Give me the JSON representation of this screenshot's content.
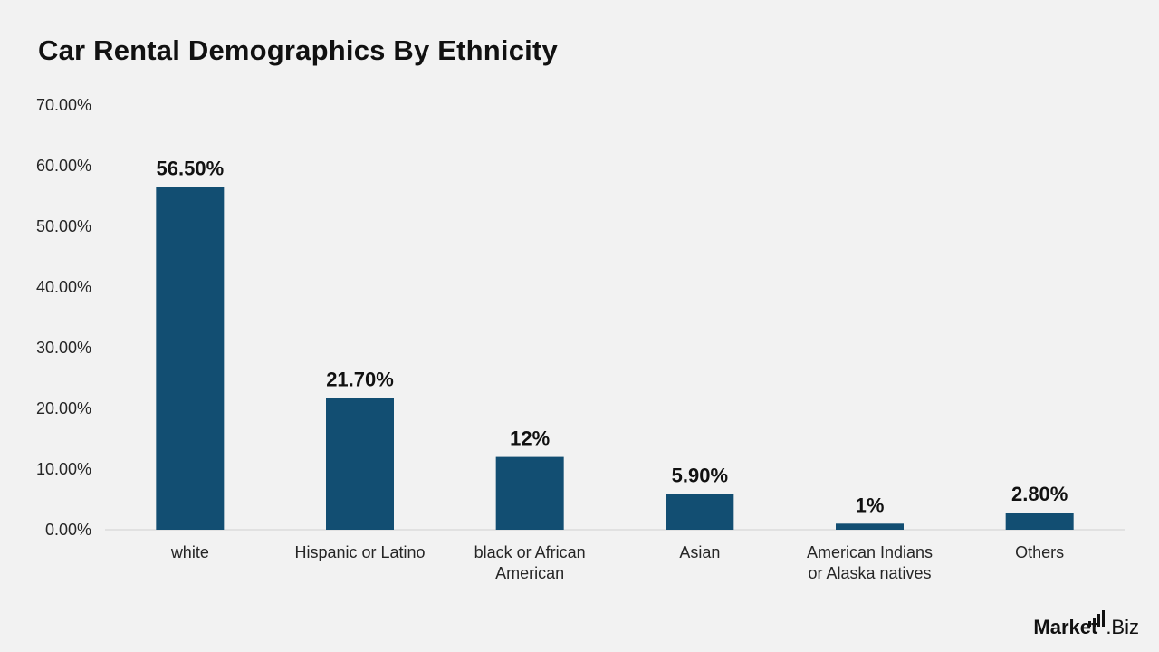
{
  "chart_data": {
    "type": "bar",
    "title": "Car Rental Demographics By Ethnicity",
    "xlabel": "",
    "ylabel": "",
    "categories": [
      [
        "white"
      ],
      [
        "Hispanic or Latino"
      ],
      [
        "black or African",
        "American"
      ],
      [
        "Asian"
      ],
      [
        "American Indians",
        "or Alaska natives"
      ],
      [
        "Others"
      ]
    ],
    "values": [
      56.5,
      21.7,
      12,
      5.9,
      1,
      2.8
    ],
    "data_labels": [
      "56.50%",
      "21.70%",
      "12%",
      "5.90%",
      "1%",
      "2.80%"
    ],
    "ylim": [
      0,
      70
    ],
    "yticks": [
      0,
      10,
      20,
      30,
      40,
      50,
      60,
      70
    ],
    "ytick_labels": [
      "0.00%",
      "10.00%",
      "20.00%",
      "30.00%",
      "40.00%",
      "50.00%",
      "60.00%",
      "70.00%"
    ],
    "grid": false,
    "legend": "none",
    "bar_color": "#124e72"
  },
  "branding": {
    "logo_text": "Market",
    "logo_suffix": ".Biz",
    "logo_icon": "bar-chart-icon"
  }
}
